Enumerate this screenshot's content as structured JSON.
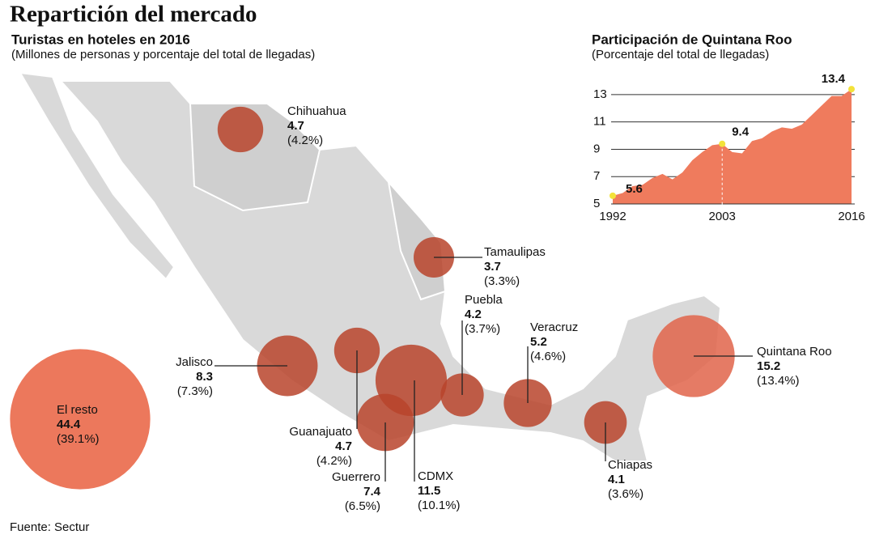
{
  "header": {
    "title": "Repartición del mercado"
  },
  "map": {
    "title": "Turistas en hoteles en 2016",
    "subtitle": "(Millones de personas y porcentaje del total de llegadas)",
    "names": [
      "Chihuahua",
      "Tamaulipas",
      "Puebla",
      "Veracruz",
      "Quintana Roo",
      "Jalisco",
      "Guanajuato",
      "CDMX",
      "Guerrero",
      "Chiapas",
      "El resto"
    ],
    "values": [
      4.7,
      3.7,
      4.2,
      5.2,
      15.2,
      8.3,
      4.7,
      11.5,
      7.4,
      4.1,
      44.4
    ],
    "shares": [
      4.2,
      3.3,
      3.7,
      4.6,
      13.4,
      7.3,
      4.2,
      10.1,
      6.5,
      3.6,
      39.1
    ],
    "share_labels": [
      "(4.2%)",
      "(3.3%)",
      "(3.7%)",
      "(4.6%)",
      "(13.4%)",
      "(7.3%)",
      "(4.2%)",
      "(10.1%)",
      "(6.5%)",
      "(3.6%)",
      "(39.1%)"
    ],
    "colors": [
      "#b9442c",
      "#b9442c",
      "#b9442c",
      "#b9442c",
      "#e0644a",
      "#b9442c",
      "#b9442c",
      "#b9442c",
      "#b9442c",
      "#b9442c",
      "#ec785c"
    ]
  },
  "source": "Fuente: Sectur",
  "chart_data": {
    "type": "area",
    "title": "Participación de Quintana Roo",
    "subtitle": "(Porcentaje del total de llegadas)",
    "x": [
      1992,
      1993,
      1994,
      1995,
      1996,
      1997,
      1998,
      1999,
      2000,
      2001,
      2002,
      2003,
      2004,
      2005,
      2006,
      2007,
      2008,
      2009,
      2010,
      2011,
      2012,
      2013,
      2014,
      2015,
      2016
    ],
    "values": [
      5.6,
      5.8,
      6.3,
      6.4,
      6.9,
      7.2,
      6.8,
      7.3,
      8.2,
      8.8,
      9.3,
      9.4,
      8.8,
      8.7,
      9.6,
      9.8,
      10.3,
      10.6,
      10.5,
      10.8,
      11.5,
      12.2,
      12.9,
      12.9,
      13.4
    ],
    "color": "#ef7b5d",
    "marker_color": "#f3e23a",
    "xlim": [
      1992,
      2016
    ],
    "xticks": [
      1992,
      2003,
      2016
    ],
    "ylim": [
      5,
      14
    ],
    "yticks": [
      5,
      7,
      9,
      11,
      13
    ],
    "grid": true
  }
}
